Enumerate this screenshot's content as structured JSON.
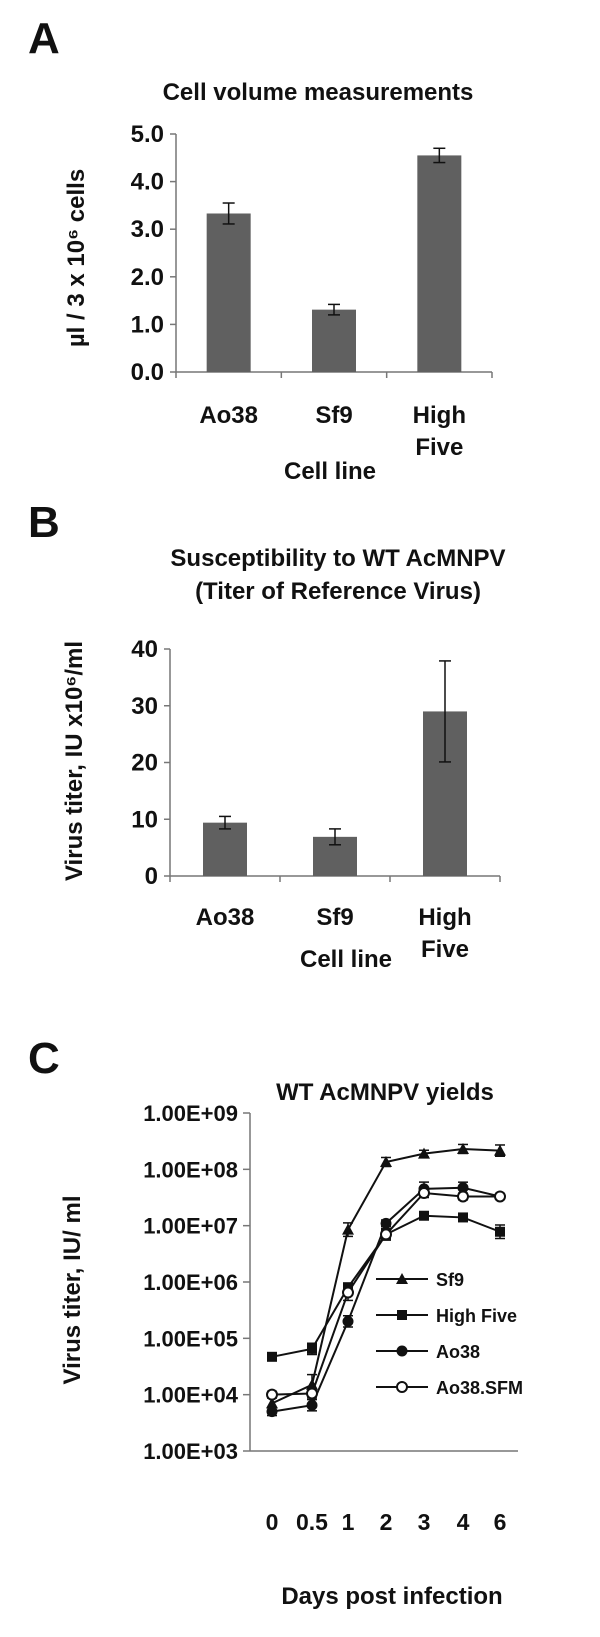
{
  "panels": {
    "a": {
      "letter": "A"
    },
    "b": {
      "letter": "B"
    },
    "c": {
      "letter": "C"
    }
  },
  "chart_data": [
    {
      "id": "a",
      "type": "bar",
      "title": "Cell volume measurements",
      "ylabel": "µl / 3 x 10⁶ cells",
      "xlabel": "Cell line",
      "categories": [
        "Ao38",
        "Sf9",
        "High Five"
      ],
      "values": [
        3.33,
        1.31,
        4.55
      ],
      "errors": [
        0.22,
        0.11,
        0.15
      ],
      "ylim": [
        0,
        5
      ],
      "yticks": [
        "0.0",
        "1.0",
        "2.0",
        "3.0",
        "4.0",
        "5.0"
      ],
      "bar_color": "#606060",
      "grid": false
    },
    {
      "id": "b",
      "type": "bar",
      "title": "Susceptibility to WT AcMNPV",
      "subtitle": "(Titer of Reference Virus)",
      "ylabel": "Virus titer, IU x10⁶/ml",
      "xlabel": "Cell line",
      "categories": [
        "Ao38",
        "Sf9",
        "High Five"
      ],
      "values": [
        9.4,
        6.9,
        29.0
      ],
      "errors": [
        1.1,
        1.4,
        8.9
      ],
      "ylim": [
        0,
        40
      ],
      "yticks": [
        "0",
        "10",
        "20",
        "30",
        "40"
      ],
      "bar_color": "#606060",
      "grid": false
    },
    {
      "id": "c",
      "type": "line",
      "title": "WT AcMNPV yields",
      "ylabel": "Virus titer, IU/ ml",
      "xlabel": "Days post infection",
      "x": [
        "0",
        "0.5",
        "1",
        "2",
        "3",
        "4",
        "6"
      ],
      "yscale": "log",
      "ylim": [
        1000,
        1000000000
      ],
      "yticks": [
        "1.00E+03",
        "1.00E+04",
        "1.00E+05",
        "1.00E+06",
        "1.00E+07",
        "1.00E+08",
        "1.00E+09"
      ],
      "legend_position": "right",
      "grid": false,
      "series": [
        {
          "name": "Sf9",
          "marker": "triangle",
          "values": [
            7000,
            15000,
            8500000,
            135000000,
            190000000,
            230000000,
            215000000
          ],
          "errors_log": [
            0.15,
            0.18,
            0.12,
            0.08,
            0.06,
            0.08,
            0.1
          ]
        },
        {
          "name": "High Five",
          "marker": "square",
          "values": [
            47000,
            65000,
            800000,
            7000000,
            15000000,
            14000000,
            7800000
          ],
          "errors_log": [
            0.06,
            0.1,
            0.08,
            0.1,
            0.05,
            0.05,
            0.12
          ]
        },
        {
          "name": "Ao38",
          "marker": "circle",
          "values": [
            5000,
            6500,
            200000,
            11000000,
            45000000,
            47000000,
            33000000
          ],
          "errors_log": [
            0.07,
            0.1,
            0.1,
            0.06,
            0.12,
            0.1,
            0.05
          ]
        },
        {
          "name": "Ao38.SFM",
          "marker": "open-circle",
          "values": [
            10000,
            10500,
            650000,
            7000000,
            38000000,
            33000000,
            33000000
          ],
          "errors_log": [
            0.06,
            0.08,
            0.14,
            0.1,
            0.08,
            0.06,
            0.05
          ]
        }
      ]
    }
  ]
}
